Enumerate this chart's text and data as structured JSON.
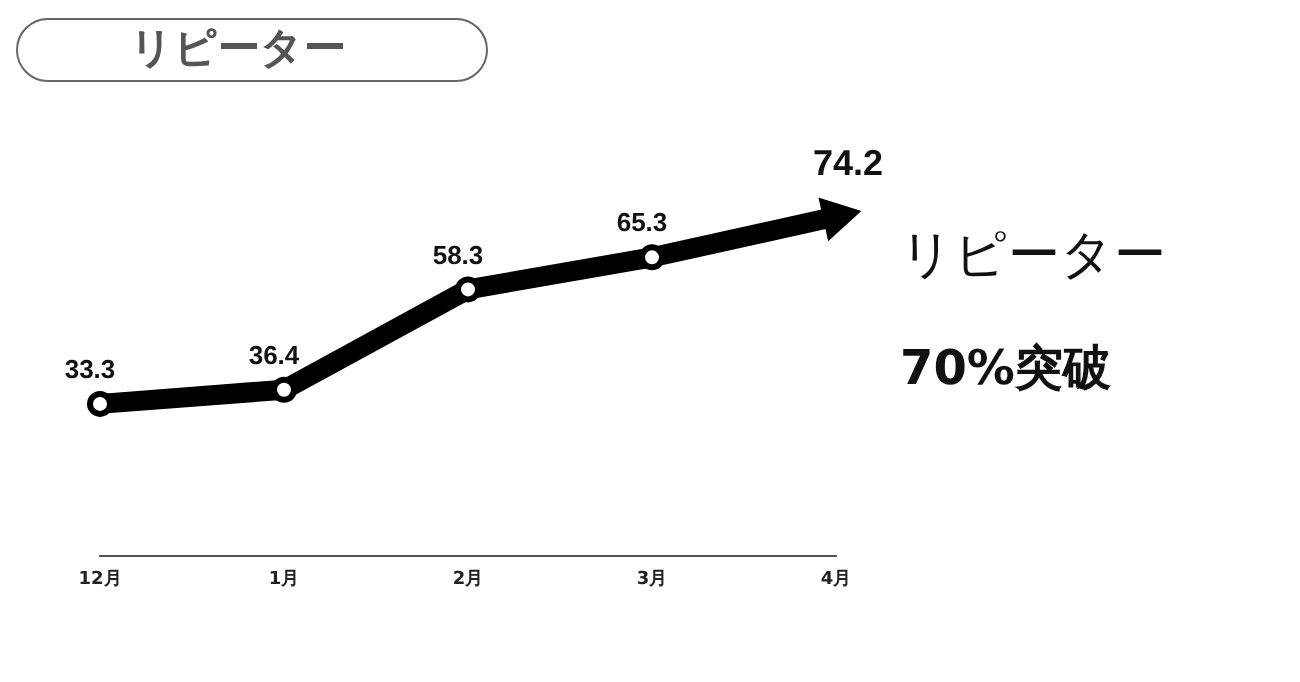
{
  "chart_data": {
    "type": "line",
    "title": "リピーター",
    "categories": [
      "12月",
      "1月",
      "2月",
      "3月",
      "4月"
    ],
    "series": [
      {
        "color": "#000000",
        "values": [
          33.3,
          36.4,
          58.3,
          65.3,
          74.2
        ]
      }
    ],
    "data_labels": true,
    "marker": "circle",
    "line_style": "solid",
    "grid": false,
    "legend": false,
    "tick_labels": "x",
    "annotations": [
      "リピーター",
      "70%突破"
    ]
  }
}
